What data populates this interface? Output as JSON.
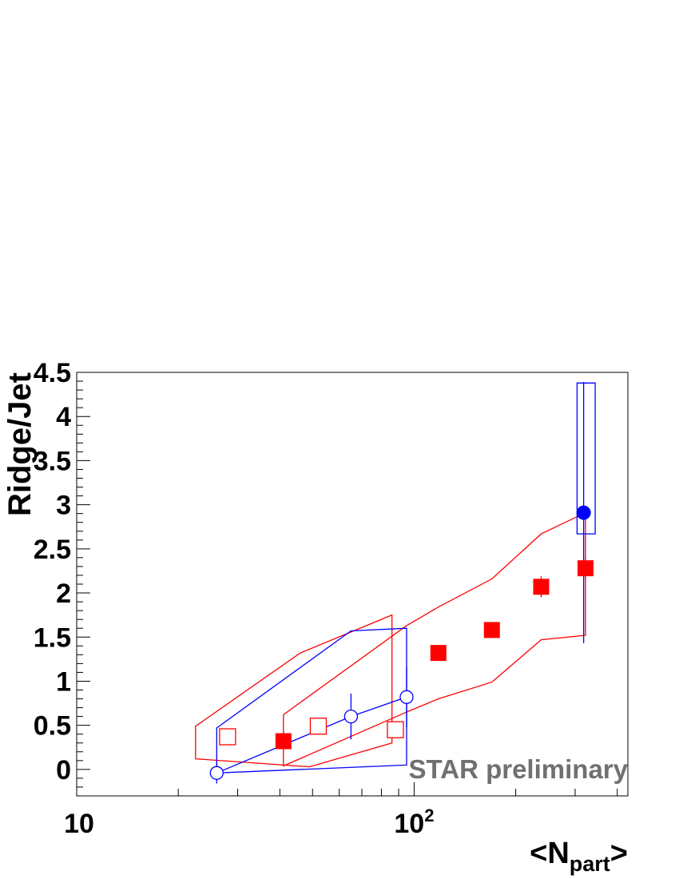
{
  "chart_data": {
    "type": "scatter",
    "title": "",
    "xlabel": "<N",
    "xlabel_sub": "part",
    "xlabel_end": ">",
    "ylabel": "Ridge/Jet",
    "x_scale": "log",
    "xlim": [
      10,
      430
    ],
    "ylim": [
      -0.3,
      4.5
    ],
    "x_tick_labels": [
      {
        "value": 10,
        "label": "10"
      },
      {
        "value": 100,
        "label": "10",
        "sup": "2"
      }
    ],
    "y_tick_labels": [
      {
        "value": 0,
        "label": "0"
      },
      {
        "value": 0.5,
        "label": "0.5"
      },
      {
        "value": 1,
        "label": "1"
      },
      {
        "value": 1.5,
        "label": "1.5"
      },
      {
        "value": 2,
        "label": "2"
      },
      {
        "value": 2.5,
        "label": "2.5"
      },
      {
        "value": 3,
        "label": "3"
      },
      {
        "value": 3.5,
        "label": "3.5"
      },
      {
        "value": 4,
        "label": "4"
      },
      {
        "value": 4.5,
        "label": "4.5"
      }
    ],
    "grid": false,
    "annotation": "STAR preliminary",
    "series": [
      {
        "marker": "filled-square",
        "color": "#ff0000",
        "x": [
          41,
          118,
          170,
          238,
          322
        ],
        "y": [
          0.32,
          1.32,
          1.58,
          2.07,
          2.28
        ],
        "yerr": [
          0.05,
          0.05,
          0.05,
          0.12,
          0.13
        ]
      },
      {
        "marker": "open-square",
        "color": "#ff0000",
        "x": [
          28,
          52,
          88
        ],
        "y": [
          0.37,
          0.49,
          0.45
        ],
        "yerr": [
          0.0,
          0.0,
          0.0
        ]
      },
      {
        "marker": "open-circle",
        "color": "#0000ff",
        "x": [
          26,
          65,
          95
        ],
        "y": [
          -0.04,
          0.6,
          0.82
        ],
        "yerr": [
          0.12,
          0.26,
          0.34
        ],
        "connect": true
      },
      {
        "marker": "filled-circle",
        "color": "#0000ff",
        "x": [
          318
        ],
        "y": [
          2.91
        ],
        "yerr_low": [
          1.48
        ],
        "yerr_high": [
          1.48
        ]
      }
    ],
    "bands": [
      {
        "color": "#ff0000",
        "points": [
          [
            22.5,
            0.49
          ],
          [
            46,
            1.32
          ],
          [
            86,
            1.75
          ],
          [
            86,
            0.3
          ],
          [
            49,
            0.03
          ],
          [
            22.5,
            0.12
          ]
        ]
      },
      {
        "color": "#ff0000",
        "points": [
          [
            41,
            0.62
          ],
          [
            95,
            1.63
          ],
          [
            118,
            1.84
          ],
          [
            170,
            2.16
          ],
          [
            238,
            2.67
          ],
          [
            322,
            2.91
          ],
          [
            322,
            1.52
          ],
          [
            238,
            1.47
          ],
          [
            170,
            0.99
          ],
          [
            118,
            0.8
          ],
          [
            95,
            0.65
          ],
          [
            41,
            0.04
          ]
        ]
      },
      {
        "color": "#0000ff",
        "points": [
          [
            26,
            0.47
          ],
          [
            65,
            1.57
          ],
          [
            95,
            1.6
          ],
          [
            95,
            0.05
          ],
          [
            26,
            -0.04
          ]
        ]
      },
      {
        "color": "#0000ff",
        "points": [
          [
            304,
            2.67
          ],
          [
            344,
            2.67
          ],
          [
            344,
            4.38
          ],
          [
            304,
            4.38
          ]
        ]
      }
    ]
  }
}
